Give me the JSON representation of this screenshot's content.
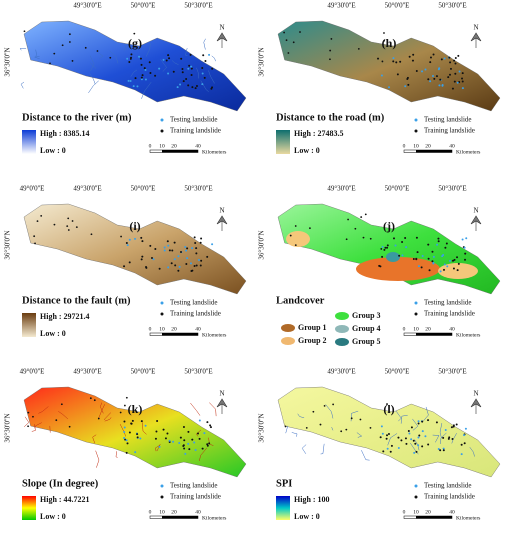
{
  "north": "N",
  "y_label": "36°30'0''N",
  "legend": {
    "testing": "Testing landslide",
    "training": "Training landslide"
  },
  "scale_bar": {
    "ticks": [
      "0",
      "10",
      "20",
      "40"
    ],
    "unit": "Kilometers"
  },
  "panels": [
    {
      "label": "(g)",
      "title": "Distance to the river (m)",
      "high": "High : 8385.14",
      "low": "Low : 0",
      "x_labels": [
        "49°30'0''E",
        "50°0'0''E",
        "50°30'0''E"
      ]
    },
    {
      "label": "(h)",
      "title": "Distance to the road (m)",
      "high": "High : 27483.5",
      "low": "Low : 0",
      "x_labels": [
        "49°30'0''E",
        "50°0'0''E",
        "50°30'0''E"
      ]
    },
    {
      "label": "(i)",
      "title": "Distance to the fault (m)",
      "high": "High : 29721.4",
      "low": "Low : 0",
      "x_labels": [
        "49°0'0''E",
        "49°30'0''E",
        "50°0'0''E",
        "50°30'0''E"
      ]
    },
    {
      "label": "(j)",
      "title": "Landcover",
      "groups": [
        "Group 1",
        "Group 2",
        "Group 3",
        "Group 4",
        "Group 5"
      ],
      "x_labels": [
        "49°30'0''E",
        "50°0'0''E",
        "50°30'0''E"
      ]
    },
    {
      "label": "(k)",
      "title": "Slope (In degree)",
      "high": "High : 44.7221",
      "low": "Low : 0",
      "x_labels": [
        "49°0'0''E",
        "49°30'0''E",
        "50°0'0''E",
        "50°30'0''E"
      ]
    },
    {
      "label": "(l)",
      "title": "SPI",
      "high": "High : 100",
      "low": "Low : 0",
      "x_labels": [
        "49°30'0''E",
        "50°0'0''E",
        "50°30'0''E"
      ]
    }
  ]
}
